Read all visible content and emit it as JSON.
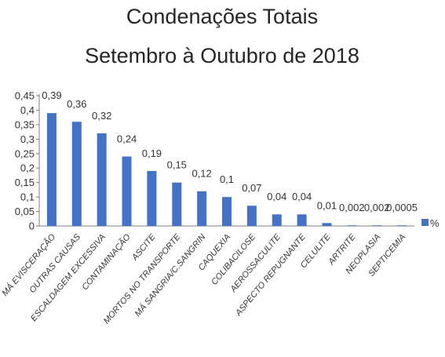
{
  "chart_data": {
    "type": "bar",
    "title": [
      "Condenações Totais",
      "Setembro à Outubro de 2018"
    ],
    "xlabel": "",
    "ylabel": "",
    "categories": [
      "MÁ EVISCERAÇÃO",
      "OUTRAS CAUSAS",
      "ESCALDAGEM EXCESSIVA",
      "CONTAMINAÇÃO",
      "ASCITE",
      "MORTOS NO TRANSPORTE",
      "MÁ SANGRIA/C.SANGRIN",
      "CAQUEXIA",
      "COLIBACILOSE",
      "AEROSSACULITE",
      "ASPECTO REPUGNANTE",
      "CELULITE",
      "ARTRITE",
      "NEOPLASIA",
      "SEPTICEMIA"
    ],
    "series": [
      {
        "name": "%",
        "values": [
          0.39,
          0.36,
          0.32,
          0.24,
          0.19,
          0.15,
          0.12,
          0.1,
          0.07,
          0.04,
          0.04,
          0.01,
          0.002,
          0.002,
          0.0005
        ],
        "labels": [
          "0,39",
          "0,36",
          "0,32",
          "0,24",
          "0,19",
          "0,15",
          "0,12",
          "0,1",
          "0,07",
          "0,04",
          "0,04",
          "0,01",
          "0,002",
          "0,002",
          "0,0005"
        ]
      }
    ],
    "ylim": [
      0,
      0.45
    ],
    "yticks": [
      0,
      0.05,
      0.1,
      0.15,
      0.2,
      0.25,
      0.3,
      0.35,
      0.4,
      0.45
    ],
    "ytick_labels": [
      "0",
      "0,05",
      "0,1",
      "0,15",
      "0,2",
      "0,25",
      "0,3",
      "0,35",
      "0,4",
      "0,45"
    ],
    "grid": false,
    "legend": "right",
    "colors": {
      "bar": "#4472C4"
    }
  }
}
